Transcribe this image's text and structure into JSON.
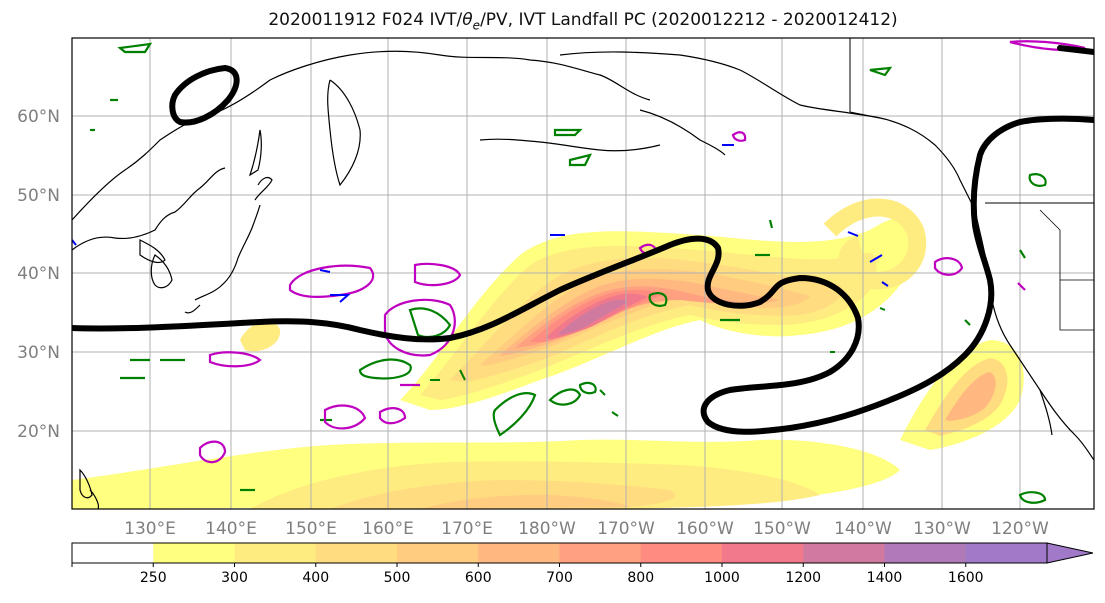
{
  "title": "2020011912 F024 IVT/θe/PV, IVT Landfall PC (2020012212 - 2020012412)",
  "title_parts": {
    "prefix": "2020011912 F024 IVT/",
    "theta": "θ",
    "sub": "e",
    "suffix": "/PV, IVT Landfall PC (2020012212 - 2020012412)"
  },
  "map": {
    "lat_labels": [
      "60°N",
      "50°N",
      "40°N",
      "30°N",
      "20°N"
    ],
    "lon_labels": [
      "130°E",
      "140°E",
      "150°E",
      "160°E",
      "170°E",
      "180°W",
      "170°W",
      "160°W",
      "150°W",
      "140°W",
      "130°W",
      "120°W"
    ],
    "colors": {
      "coast": "#000000",
      "grid": "#b0b0b0",
      "landfall_contour": "#000000",
      "theta_e": "#008000",
      "pv_contour": "#c000c0",
      "blue_contour": "#0000ff"
    }
  },
  "colorbar": {
    "labels": [
      "250",
      "300",
      "400",
      "500",
      "600",
      "700",
      "800",
      "1000",
      "1200",
      "1400",
      "1600"
    ],
    "colors": [
      "#ffffff",
      "#ffff80",
      "#ffec80",
      "#ffdc80",
      "#ffcc80",
      "#ffb880",
      "#ffa080",
      "#ff8c80",
      "#f07a8c",
      "#d07aa0",
      "#b07ab8",
      "#a07ac8"
    ]
  }
}
